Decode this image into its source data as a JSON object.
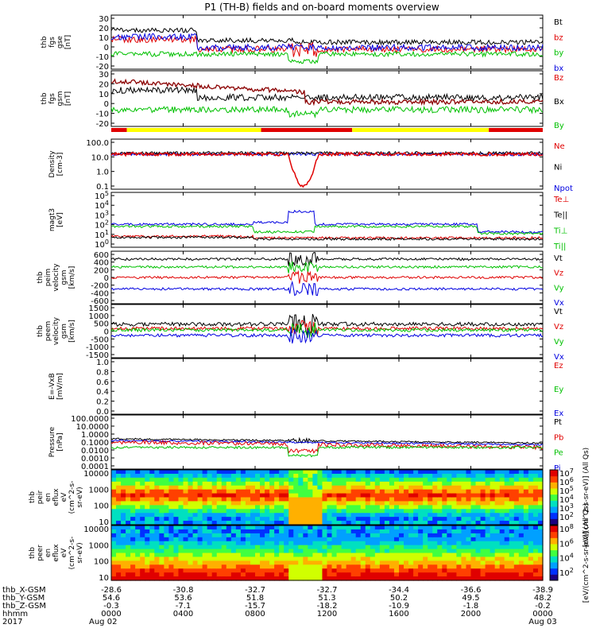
{
  "title": "P1 (TH-B) fields and on-board moments overview",
  "panels": [
    {
      "id": "fgs-gse",
      "ylabel": [
        "thb",
        "fgs",
        "gse",
        "[nT]"
      ],
      "yticks": [
        "30",
        "20",
        "10",
        "0",
        "-10",
        "-20"
      ],
      "legend": [
        {
          "name": "Bt",
          "color": "#000000"
        },
        {
          "name": "bz",
          "color": "#e00000"
        },
        {
          "name": "by",
          "color": "#00c000"
        },
        {
          "name": "bx",
          "color": "#0000e0"
        }
      ]
    },
    {
      "id": "fgs-gsm",
      "ylabel": [
        "thb",
        "fgs",
        "gsm",
        "[nT]"
      ],
      "yticks": [
        "30",
        "20",
        "10",
        "0",
        "-10",
        "-20"
      ],
      "legend": [
        {
          "name": "Bz",
          "color": "#e00000"
        },
        {
          "name": "Bx",
          "color": "#000000"
        },
        {
          "name": "By",
          "color": "#00c000"
        }
      ]
    },
    {
      "id": "density",
      "ylabel": [
        "Density",
        "[cm-3]"
      ],
      "yticks": [
        "100.0",
        "10.0",
        "1.0",
        "0.1"
      ],
      "legend": [
        {
          "name": "Ne",
          "color": "#e00000"
        },
        {
          "name": "Ni",
          "color": "#000000"
        },
        {
          "name": "Npot",
          "color": "#0000e0"
        }
      ]
    },
    {
      "id": "temperature",
      "ylabel": [
        "magt3",
        "[eV]"
      ],
      "yticks": [
        "10^5",
        "10^4",
        "10^3",
        "10^2",
        "10^1",
        "10^0"
      ],
      "legend": [
        {
          "name": "Te⊥",
          "color": "#e00000"
        },
        {
          "name": "Te||",
          "color": "#000000"
        },
        {
          "name": "Ti⊥",
          "color": "#00c000"
        },
        {
          "name": "Ti||",
          "color": "#00c000"
        }
      ]
    },
    {
      "id": "peim-velocity",
      "ylabel": [
        "thb",
        "peim",
        "velocity",
        "gsm",
        "[km/s]"
      ],
      "yticks": [
        "600",
        "400",
        "200",
        "0",
        "-200",
        "-400",
        "-600"
      ],
      "legend": [
        {
          "name": "Vt",
          "color": "#000000"
        },
        {
          "name": "Vz",
          "color": "#e00000"
        },
        {
          "name": "Vy",
          "color": "#00c000"
        },
        {
          "name": "Vx",
          "color": "#0000e0"
        }
      ]
    },
    {
      "id": "peem-velocity",
      "ylabel": [
        "thb",
        "peem",
        "velocity",
        "gsm",
        "[km/s]"
      ],
      "yticks": [
        "1500",
        "1000",
        "500",
        "0",
        "-500",
        "-1000",
        "-1500"
      ],
      "legend": [
        {
          "name": "Vt",
          "color": "#000000"
        },
        {
          "name": "Vz",
          "color": "#e00000"
        },
        {
          "name": "Vy",
          "color": "#00c000"
        },
        {
          "name": "Vx",
          "color": "#0000e0"
        }
      ]
    },
    {
      "id": "efield",
      "ylabel": [
        "E=-VxB",
        "[mV/m]"
      ],
      "yticks": [
        "1.0",
        "0.8",
        "0.6",
        "0.4",
        "0.2",
        "0.0"
      ],
      "legend": [
        {
          "name": "Ez",
          "color": "#e00000"
        },
        {
          "name": "Ey",
          "color": "#00c000"
        },
        {
          "name": "Ex",
          "color": "#0000e0"
        }
      ]
    },
    {
      "id": "pressure",
      "ylabel": [
        "Pressure",
        "[nPa]"
      ],
      "yticks": [
        "100.0000",
        "10.0000",
        "1.0000",
        "0.1000",
        "0.0100",
        "0.0010",
        "0.0001"
      ],
      "legend": [
        {
          "name": "Pt",
          "color": "#000000"
        },
        {
          "name": "Pb",
          "color": "#e00000"
        },
        {
          "name": "Pe",
          "color": "#00c000"
        },
        {
          "name": "Pi",
          "color": "#0000e0"
        }
      ]
    },
    {
      "id": "peir-spec",
      "ylabel": [
        "thb",
        "peir",
        "en",
        "eflux",
        "eV",
        "(cm^2-s-",
        "sr-eV)"
      ],
      "yticks": [
        "10000",
        "1000",
        "100",
        "10"
      ]
    },
    {
      "id": "peer-spec",
      "ylabel": [
        "thb",
        "peer",
        "en",
        "eflux",
        "eV",
        "(cm^2-s-",
        "sr-eV)"
      ],
      "yticks": [
        "10000",
        "1000",
        "100",
        "10"
      ]
    }
  ],
  "colorbars": [
    {
      "ticks": [
        "10^7",
        "10^6",
        "10^5",
        "10^4",
        "10^3",
        "10^2"
      ],
      "label": "[eV/(cm^2-s-sr-eV)] (All Qs)"
    },
    {
      "ticks": [
        "10^8",
        "10^6",
        "10^4",
        "10^2"
      ],
      "label": "[eV/(cm^2-s-sr-eV)] (All Qs)"
    }
  ],
  "ephemeris": {
    "rows": [
      {
        "label": "thb_X-GSM",
        "values": [
          "-28.6",
          "-30.8",
          "-32.7",
          "-32.7",
          "-34.4",
          "-36.6",
          "-38.9"
        ]
      },
      {
        "label": "thb_Y-GSM",
        "values": [
          "54.6",
          "53.6",
          "51.8",
          "51.3",
          "50.2",
          "49.5",
          "48.2"
        ]
      },
      {
        "label": "thb_Z-GSM",
        "values": [
          "-0.3",
          "-7.1",
          "-15.7",
          "-18.2",
          "-10.9",
          "-1.8",
          "-0.2"
        ]
      },
      {
        "label": "hhmm",
        "values": [
          "0000",
          "0400",
          "0800",
          "1200",
          "1600",
          "2000",
          "0000"
        ]
      }
    ],
    "year": "2017",
    "start_date": "Aug 02",
    "end_date": "Aug 03"
  },
  "chart_data": {
    "type": "line",
    "title": "P1 (TH-B) fields and on-board moments overview",
    "x": [
      "0000",
      "0400",
      "0800",
      "1200",
      "1600",
      "2000",
      "0000"
    ],
    "xlabel": "hhmm",
    "date_range": [
      "2017 Aug 02",
      "Aug 03"
    ],
    "mode_bar": [
      {
        "from": 0.0,
        "to": 1.3,
        "color": "red"
      },
      {
        "from": 1.3,
        "to": 12.5,
        "color": "yellow"
      },
      {
        "from": 12.5,
        "to": 20.1,
        "color": "red"
      },
      {
        "from": 20.1,
        "to": 31.5,
        "color": "yellow"
      },
      {
        "from": 31.5,
        "to": 36.0,
        "color": "red"
      }
    ],
    "series_approx": [
      {
        "panel": "fgs-gse",
        "name": "Bt",
        "values": [
          14,
          15,
          15,
          14,
          12,
          12,
          8,
          10,
          18,
          14,
          12,
          12,
          10
        ]
      },
      {
        "panel": "fgs-gse",
        "name": "by",
        "values": [
          -3,
          -4,
          -4,
          -5,
          -4,
          -5,
          -6,
          -12,
          -3,
          -4,
          -5,
          -4,
          -4
        ]
      },
      {
        "panel": "fgs-gsm",
        "name": "Bz",
        "values": [
          26,
          22,
          18,
          16,
          14,
          12,
          6,
          10,
          10,
          12,
          12,
          10,
          9
        ]
      },
      {
        "panel": "fgs-gsm",
        "name": "By",
        "values": [
          -3,
          -5,
          -5,
          -4,
          -5,
          -6,
          -8,
          -8,
          -5,
          -6,
          -5,
          -5,
          -5
        ]
      },
      {
        "panel": "density",
        "name": "Ne",
        "values": [
          15,
          12,
          14,
          15,
          12,
          13,
          0.1,
          10,
          15,
          14,
          13,
          14,
          15
        ]
      },
      {
        "panel": "temperature",
        "name": "Ti||",
        "values": [
          1000,
          1000,
          1000,
          1000,
          200,
          200,
          3000,
          200,
          800,
          900,
          900,
          200,
          200
        ]
      },
      {
        "panel": "peim-velocity",
        "name": "Vt",
        "values": [
          300,
          310,
          320,
          310,
          300,
          300,
          200,
          350,
          310,
          300,
          300,
          300,
          300
        ]
      },
      {
        "panel": "peim-velocity",
        "name": "Vx",
        "values": [
          -300,
          -310,
          -320,
          -310,
          -300,
          -290,
          -100,
          -350,
          -310,
          -300,
          -300,
          -300,
          -300
        ]
      },
      {
        "panel": "pressure",
        "name": "Pt",
        "values": [
          0.3,
          0.3,
          0.3,
          0.25,
          0.15,
          0.12,
          0.06,
          0.2,
          0.15,
          0.12,
          0.12,
          0.1,
          0.1
        ]
      }
    ]
  }
}
